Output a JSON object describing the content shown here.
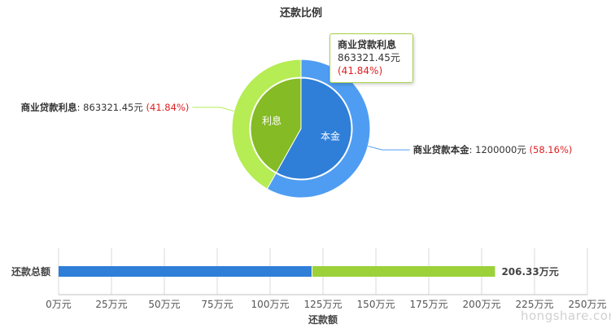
{
  "chart_data": [
    {
      "type": "pie",
      "title": "还款比例",
      "outer_ring": {
        "slices": [
          {
            "label": "商业贷款本金",
            "value": 1200000,
            "value_text": "1200000元",
            "percent": 58.16,
            "percent_text": "(58.16%)",
            "color": "#4f9df2"
          },
          {
            "label": "商业贷款利息",
            "value": 863321.45,
            "value_text": "863321.45元",
            "percent": 41.84,
            "percent_text": "(41.84%)",
            "color": "#b6ec54"
          }
        ]
      },
      "inner_pie": {
        "slices": [
          {
            "label": "本金",
            "value": 1200000,
            "color": "#2f7ed8"
          },
          {
            "label": "利息",
            "value": 863321.45,
            "color": "#85bb24"
          }
        ]
      },
      "tooltip": {
        "title": "商业贷款利息",
        "value_text": "863321.45元",
        "percent_text": "(41.84%)"
      }
    },
    {
      "type": "bar",
      "orientation": "horizontal",
      "stacked": true,
      "categories": [
        "还款总额"
      ],
      "series": [
        {
          "values": [
            120
          ],
          "color": "#2f7ed8"
        },
        {
          "values": [
            86.33
          ],
          "color": "#9cd13a"
        }
      ],
      "total_label": "206.33万元",
      "xlabel": "还款额",
      "xlim": [
        0,
        250
      ],
      "xticks": [
        {
          "value": 0,
          "label": "0万元"
        },
        {
          "value": 25,
          "label": "25万元"
        },
        {
          "value": 50,
          "label": "50万元"
        },
        {
          "value": 75,
          "label": "75万元"
        },
        {
          "value": 100,
          "label": "100万元"
        },
        {
          "value": 125,
          "label": "125万元"
        },
        {
          "value": 150,
          "label": "150万元"
        },
        {
          "value": 175,
          "label": "175万元"
        },
        {
          "value": 200,
          "label": "200万元"
        },
        {
          "value": 225,
          "label": "225万元"
        },
        {
          "value": 250,
          "label": "250万元"
        }
      ],
      "grid": true
    }
  ],
  "watermark": "hongshare.com"
}
